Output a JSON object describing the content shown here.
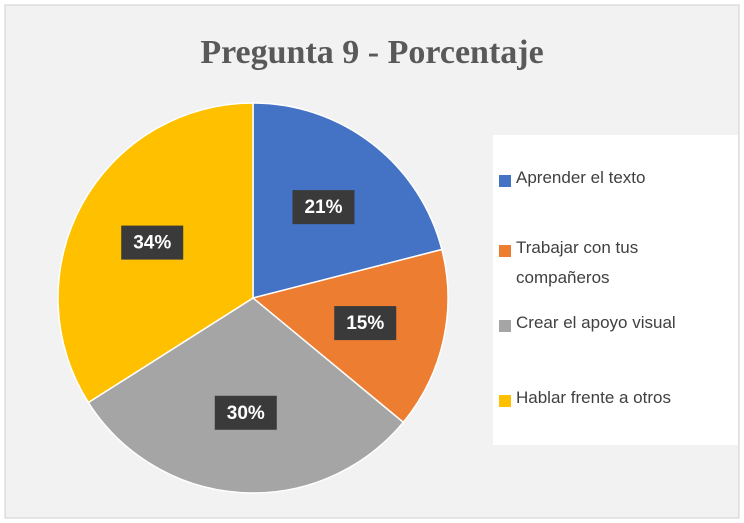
{
  "chart_data": {
    "type": "pie",
    "title": "Pregunta 9 - Porcentaje",
    "categories": [
      "Aprender el texto",
      "Trabajar con tus compañeros",
      "Crear el apoyo visual",
      "Hablar frente a otros"
    ],
    "values": [
      21,
      15,
      30,
      34
    ],
    "value_labels": [
      "21%",
      "15%",
      "30%",
      "34%"
    ],
    "colors": [
      "#4472c4",
      "#ed7d31",
      "#a5a5a5",
      "#ffc000"
    ],
    "legend": "right"
  }
}
